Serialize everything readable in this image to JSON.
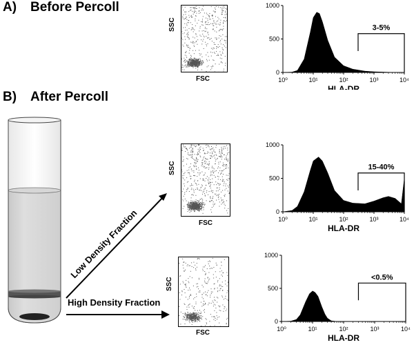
{
  "sections": {
    "a": {
      "letter": "A)",
      "title": "Before Percoll"
    },
    "b": {
      "letter": "B)",
      "title": "After Percoll"
    }
  },
  "scatter": {
    "xlabel": "FSC",
    "ylabel": "SSC"
  },
  "histogram_common": {
    "xlabel": "HLA-DR",
    "x_ticks": [
      "10⁰",
      "10¹",
      "10²",
      "10³",
      "10⁴"
    ],
    "y_ticks": [
      "0",
      "500",
      "1000"
    ],
    "y_ticks_bottom": [
      "0",
      "500",
      "1000"
    ]
  },
  "flow_labels": {
    "low": "Low Density Fraction",
    "high": "High Density Fraction"
  },
  "chart_data": [
    {
      "type": "area",
      "panel": "before",
      "xlabel": "HLA-DR",
      "x_scale": "log",
      "xlim": [
        1,
        10000
      ],
      "ylim": [
        0,
        1000
      ],
      "gate_label": "3-5%",
      "gate_range": [
        300,
        10000
      ],
      "x": [
        1,
        2,
        3,
        5,
        8,
        10,
        13,
        16,
        20,
        30,
        50,
        100,
        200,
        500,
        1000,
        3000,
        10000
      ],
      "values": [
        0,
        5,
        30,
        200,
        600,
        820,
        900,
        880,
        760,
        480,
        230,
        100,
        50,
        20,
        10,
        3,
        0
      ]
    },
    {
      "type": "area",
      "panel": "low-density",
      "xlabel": "HLA-DR",
      "x_scale": "log",
      "xlim": [
        1,
        10000
      ],
      "ylim": [
        0,
        1000
      ],
      "gate_label": "15-40%",
      "gate_range": [
        300,
        10000
      ],
      "x": [
        1,
        2,
        3,
        5,
        8,
        10,
        15,
        20,
        30,
        50,
        100,
        200,
        500,
        1000,
        2000,
        3000,
        5000,
        8000,
        10000
      ],
      "values": [
        0,
        20,
        80,
        300,
        620,
        760,
        820,
        760,
        580,
        320,
        170,
        130,
        120,
        160,
        210,
        230,
        200,
        120,
        500
      ]
    },
    {
      "type": "area",
      "panel": "high-density",
      "xlabel": "HLA-DR",
      "x_scale": "log",
      "xlim": [
        1,
        10000
      ],
      "ylim": [
        0,
        1000
      ],
      "gate_label": "<0.5%",
      "gate_range": [
        300,
        10000
      ],
      "x": [
        1,
        2,
        3,
        4,
        6,
        8,
        10,
        12,
        15,
        20,
        25,
        30,
        40,
        60
      ],
      "values": [
        0,
        5,
        30,
        100,
        300,
        420,
        460,
        440,
        380,
        220,
        110,
        50,
        10,
        0
      ]
    }
  ]
}
